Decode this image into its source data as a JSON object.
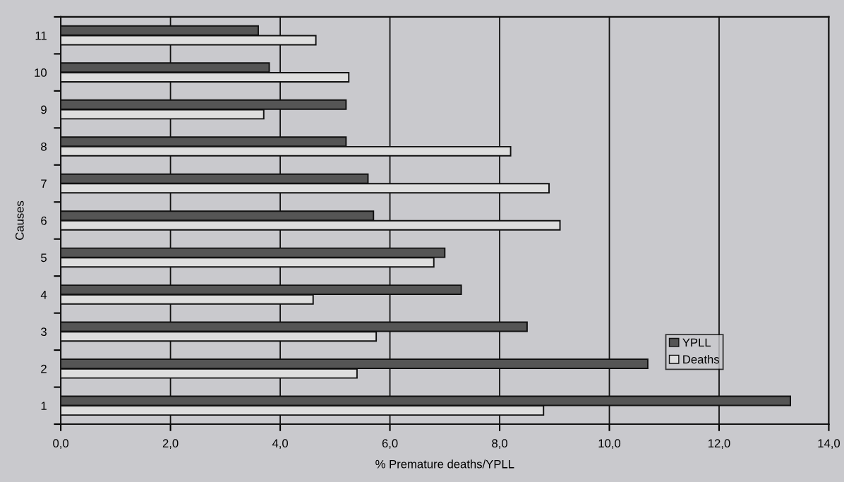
{
  "chart_data": {
    "type": "bar",
    "orientation": "horizontal",
    "xlabel": "% Premature deaths/YPLL",
    "ylabel": "Causes",
    "categories": [
      "11",
      "10",
      "9",
      "8",
      "7",
      "6",
      "5",
      "4",
      "3",
      "2",
      "1"
    ],
    "series": [
      {
        "name": "YPLL",
        "color": "#555555",
        "values": [
          3.6,
          3.8,
          5.2,
          5.2,
          5.6,
          5.7,
          7.0,
          7.3,
          8.5,
          10.7,
          13.3
        ]
      },
      {
        "name": "Deaths",
        "color": "#dedede",
        "values": [
          4.65,
          5.25,
          3.7,
          8.2,
          8.9,
          9.1,
          6.8,
          4.6,
          5.75,
          5.4,
          8.8
        ]
      }
    ],
    "xlim": [
      0,
      14
    ],
    "xticks": [
      {
        "value": 0,
        "label": "0,0"
      },
      {
        "value": 2,
        "label": "2,0"
      },
      {
        "value": 4,
        "label": "4,0"
      },
      {
        "value": 6,
        "label": "6,0"
      },
      {
        "value": 8,
        "label": "8,0"
      },
      {
        "value": 10,
        "label": "10,0"
      },
      {
        "value": 12,
        "label": "12,0"
      },
      {
        "value": 14,
        "label": "14,0"
      }
    ],
    "grid": "x",
    "legend": "lower right"
  }
}
